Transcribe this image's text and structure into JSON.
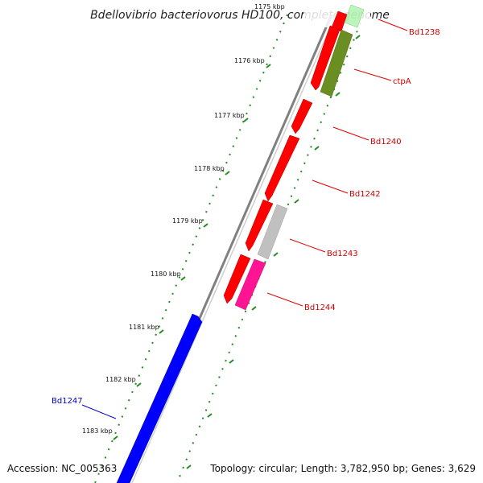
{
  "title": "Bdellovibrio bacteriovorus HD100, complete genome",
  "accession": "Accession: NC_005363",
  "topology": "Topology: circular; Length: 3,782,950 bp; Genes: 3,629",
  "ticks": [
    "1175 kbp",
    "1176 kbp",
    "1177 kbp",
    "1178 kbp",
    "1179 kbp",
    "1180 kbp",
    "1181 kbp",
    "1182 kbp",
    "1183 kbp"
  ],
  "genes": [
    {
      "label": "Bd1238",
      "color": "#d00000"
    },
    {
      "label": "ctpA",
      "color": "#d00000"
    },
    {
      "label": "Bd1240",
      "color": "#d00000"
    },
    {
      "label": "Bd1242",
      "color": "#d00000"
    },
    {
      "label": "Bd1243",
      "color": "#d00000"
    },
    {
      "label": "Bd1244",
      "color": "#d00000"
    },
    {
      "label": "Bd1247",
      "color": "#0000cc"
    }
  ],
  "colors": {
    "forward_cds": "#ff0000",
    "reverse_cds": "#0000ff",
    "olive_cds": "#6b8e23",
    "gray_cds": "#c0c0c0",
    "magenta_cds": "#ff1493",
    "light_green_cds": "#90ee90",
    "backbone": "#808080",
    "ticks": "#228b22"
  }
}
